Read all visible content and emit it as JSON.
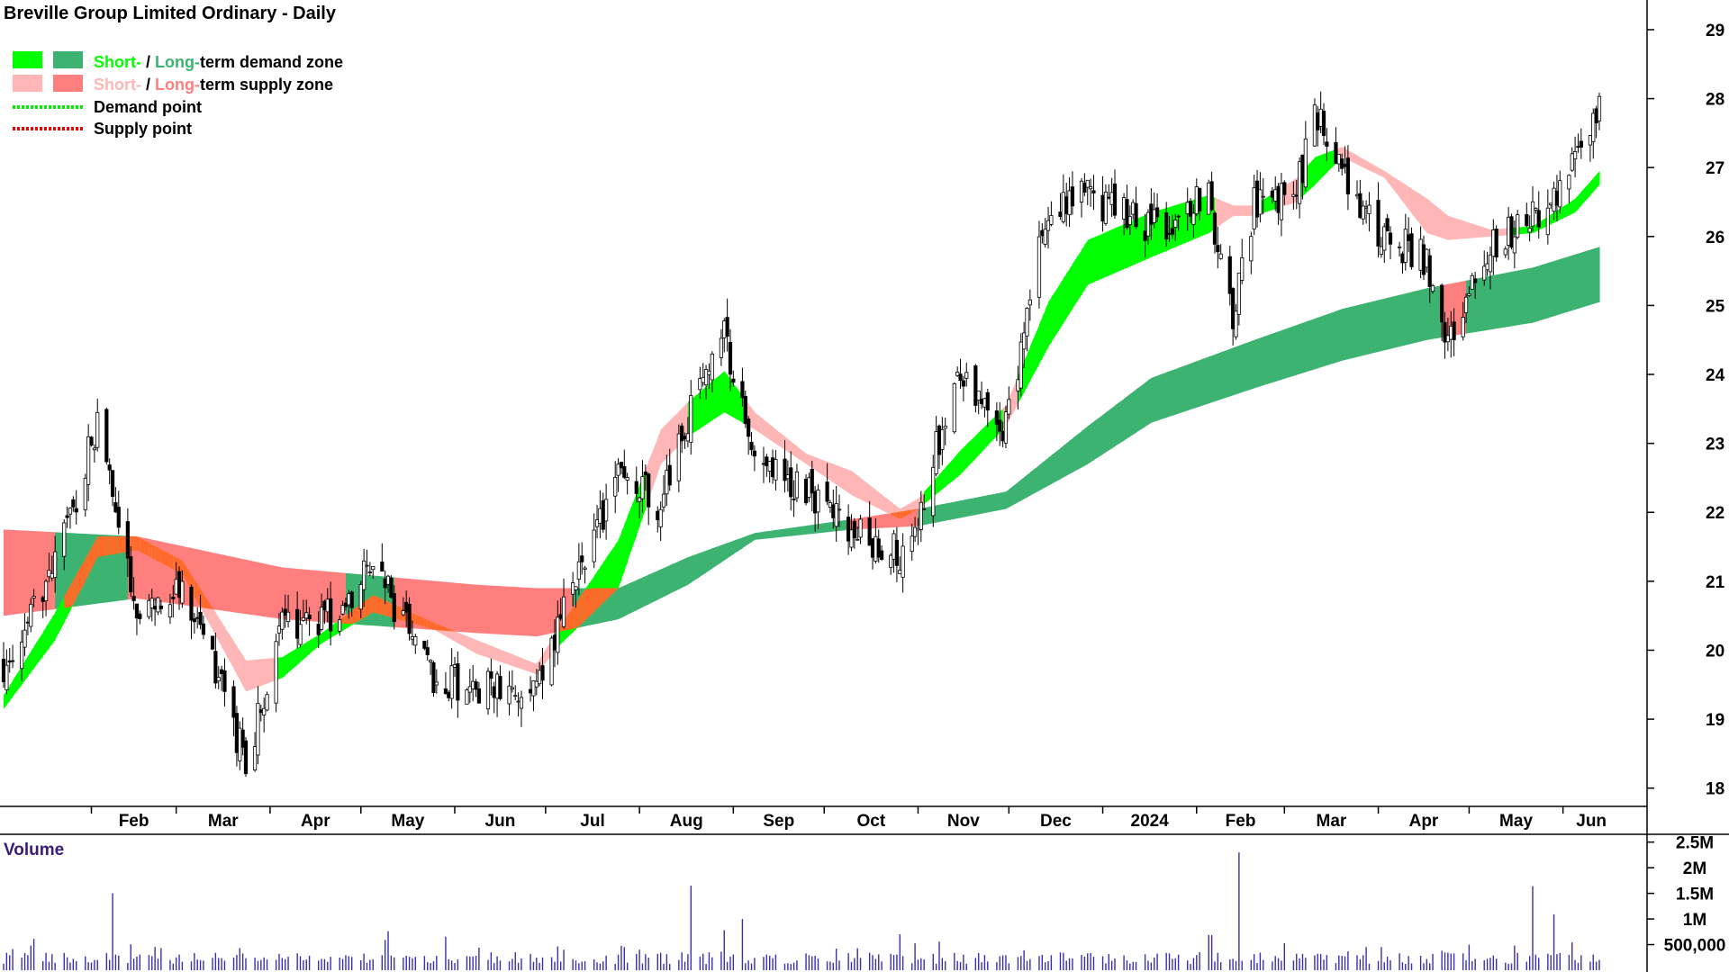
{
  "chart_data": {
    "type": "candlestick",
    "title": "Breville Group Limited Ordinary - Daily",
    "legend": {
      "demand_zone": {
        "short": "Short-",
        "sep": " / ",
        "long": "Long-",
        "rest": "term demand zone"
      },
      "supply_zone": {
        "short": "Short-",
        "sep": " / ",
        "long": "Long-",
        "rest": "term supply zone"
      },
      "demand_point": "Demand point",
      "supply_point": "Supply point",
      "placement": "top-left"
    },
    "colors": {
      "short_demand": "#00ff00",
      "long_demand": "#3cb371",
      "short_supply": "#ffb6b6",
      "long_supply": "#ff7f7f",
      "overlap": "#ff6a2a",
      "demand_point": "#00ee00",
      "supply_point": "#ee0000",
      "volume": "#3a2fb0",
      "volume_label": "#3a1c7a"
    },
    "y_axis": {
      "ticks": [
        "18",
        "19",
        "20",
        "21",
        "22",
        "23",
        "24",
        "25",
        "26",
        "27",
        "28",
        "29"
      ],
      "ylim": [
        17.8,
        29.3
      ]
    },
    "x_axis": {
      "labels": [
        "Feb",
        "Mar",
        "Apr",
        "May",
        "Jun",
        "Jul",
        "Aug",
        "Sep",
        "Oct",
        "Nov",
        "Dec",
        "2024",
        "Feb",
        "Mar",
        "Apr",
        "May",
        "Jun"
      ]
    },
    "price_anchors": {
      "x": [
        "2023-01-03",
        "2023-01-20",
        "2023-02-03",
        "2023-02-16",
        "2023-03-03",
        "2023-03-24",
        "2023-04-05",
        "2023-04-18",
        "2023-05-05",
        "2023-05-25",
        "2023-06-08",
        "2023-06-28",
        "2023-07-05",
        "2023-07-25",
        "2023-08-08",
        "2023-08-17",
        "2023-08-29",
        "2023-09-08",
        "2023-09-25",
        "2023-10-10",
        "2023-10-26",
        "2023-11-01",
        "2023-11-15",
        "2023-11-30",
        "2023-12-14",
        "2023-12-27",
        "2024-01-17",
        "2024-02-05",
        "2024-02-13",
        "2024-02-20",
        "2024-03-05",
        "2024-03-11",
        "2024-03-20",
        "2024-04-03",
        "2024-04-17",
        "2024-04-24",
        "2024-05-08",
        "2024-05-22",
        "2024-06-05",
        "2024-06-13"
      ],
      "close": [
        19.8,
        21.2,
        23.3,
        20.5,
        21.0,
        18.4,
        20.3,
        20.4,
        21.2,
        19.6,
        19.5,
        19.3,
        20.3,
        22.6,
        22.1,
        23.4,
        24.6,
        22.8,
        22.3,
        21.7,
        21.4,
        22.0,
        24.1,
        23.2,
        26.5,
        26.6,
        26.1,
        26.6,
        24.8,
        26.5,
        26.6,
        27.9,
        26.8,
        26.0,
        25.7,
        24.4,
        25.9,
        26.3,
        27.0,
        28.0
      ]
    },
    "zones": {
      "short_term": [
        {
          "x": "2023-01-03",
          "lo": 19.15,
          "hi": 19.35
        },
        {
          "x": "2023-01-20",
          "lo": 20.15,
          "hi": 20.55
        },
        {
          "x": "2023-02-03",
          "lo": 21.35,
          "hi": 21.65
        },
        {
          "x": "2023-02-16",
          "lo": 21.45,
          "hi": 21.65
        },
        {
          "x": "2023-03-03",
          "lo": 21.1,
          "hi": 21.3
        },
        {
          "x": "2023-03-24",
          "lo": 19.4,
          "hi": 19.85
        },
        {
          "x": "2023-04-05",
          "lo": 19.6,
          "hi": 19.9
        },
        {
          "x": "2023-04-18",
          "lo": 20.1,
          "hi": 20.25
        },
        {
          "x": "2023-05-05",
          "lo": 20.55,
          "hi": 20.8
        },
        {
          "x": "2023-05-25",
          "lo": 20.3,
          "hi": 20.4
        },
        {
          "x": "2023-06-08",
          "lo": 19.95,
          "hi": 20.15
        },
        {
          "x": "2023-06-28",
          "lo": 19.65,
          "hi": 19.8
        },
        {
          "x": "2023-07-05",
          "lo": 20.05,
          "hi": 20.3
        },
        {
          "x": "2023-07-25",
          "lo": 20.9,
          "hi": 21.6
        },
        {
          "x": "2023-08-08",
          "lo": 22.7,
          "hi": 23.2
        },
        {
          "x": "2023-08-17",
          "lo": 23.1,
          "hi": 23.6
        },
        {
          "x": "2023-08-29",
          "lo": 23.45,
          "hi": 24.05
        },
        {
          "x": "2023-09-08",
          "lo": 23.2,
          "hi": 23.45
        },
        {
          "x": "2023-09-25",
          "lo": 22.7,
          "hi": 22.85
        },
        {
          "x": "2023-10-10",
          "lo": 22.25,
          "hi": 22.6
        },
        {
          "x": "2023-10-26",
          "lo": 21.9,
          "hi": 22.05
        },
        {
          "x": "2023-11-01",
          "lo": 22.05,
          "hi": 22.2
        },
        {
          "x": "2023-11-15",
          "lo": 22.55,
          "hi": 22.9
        },
        {
          "x": "2023-11-30",
          "lo": 23.25,
          "hi": 23.55
        },
        {
          "x": "2023-12-14",
          "lo": 24.4,
          "hi": 25.05
        },
        {
          "x": "2023-12-27",
          "lo": 25.3,
          "hi": 25.95
        },
        {
          "x": "2024-01-17",
          "lo": 25.7,
          "hi": 26.35
        },
        {
          "x": "2024-02-05",
          "lo": 26.05,
          "hi": 26.6
        },
        {
          "x": "2024-02-13",
          "lo": 26.3,
          "hi": 26.45
        },
        {
          "x": "2024-02-20",
          "lo": 26.3,
          "hi": 26.45
        },
        {
          "x": "2024-03-05",
          "lo": 26.5,
          "hi": 26.85
        },
        {
          "x": "2024-03-11",
          "lo": 26.75,
          "hi": 27.15
        },
        {
          "x": "2024-03-20",
          "lo": 27.15,
          "hi": 27.3
        },
        {
          "x": "2024-04-03",
          "lo": 26.85,
          "hi": 26.95
        },
        {
          "x": "2024-04-17",
          "lo": 26.05,
          "hi": 26.55
        },
        {
          "x": "2024-04-24",
          "lo": 25.95,
          "hi": 26.3
        },
        {
          "x": "2024-05-08",
          "lo": 26.0,
          "hi": 26.1
        },
        {
          "x": "2024-05-22",
          "lo": 26.05,
          "hi": 26.15
        },
        {
          "x": "2024-06-05",
          "lo": 26.35,
          "hi": 26.55
        },
        {
          "x": "2024-06-13",
          "lo": 26.75,
          "hi": 26.95
        }
      ],
      "long_term": [
        {
          "x": "2023-01-03",
          "lo": 20.5,
          "hi": 21.75
        },
        {
          "x": "2023-02-16",
          "lo": 20.75,
          "hi": 21.65
        },
        {
          "x": "2023-04-05",
          "lo": 20.45,
          "hi": 21.2
        },
        {
          "x": "2023-06-08",
          "lo": 20.25,
          "hi": 20.95
        },
        {
          "x": "2023-06-28",
          "lo": 20.2,
          "hi": 20.9
        },
        {
          "x": "2023-07-25",
          "lo": 20.45,
          "hi": 20.9
        },
        {
          "x": "2023-08-17",
          "lo": 20.95,
          "hi": 21.35
        },
        {
          "x": "2023-09-08",
          "lo": 21.6,
          "hi": 21.7
        },
        {
          "x": "2023-10-10",
          "lo": 21.75,
          "hi": 21.9
        },
        {
          "x": "2023-11-01",
          "lo": 21.8,
          "hi": 22.05
        },
        {
          "x": "2023-11-30",
          "lo": 22.05,
          "hi": 22.3
        },
        {
          "x": "2023-12-27",
          "lo": 22.7,
          "hi": 23.25
        },
        {
          "x": "2024-01-17",
          "lo": 23.3,
          "hi": 23.95
        },
        {
          "x": "2024-02-20",
          "lo": 23.8,
          "hi": 24.5
        },
        {
          "x": "2024-03-20",
          "lo": 24.2,
          "hi": 24.95
        },
        {
          "x": "2024-04-17",
          "lo": 24.5,
          "hi": 25.25
        },
        {
          "x": "2024-05-22",
          "lo": 24.75,
          "hi": 25.55
        },
        {
          "x": "2024-06-13",
          "lo": 25.05,
          "hi": 25.85
        }
      ]
    },
    "volume": {
      "label": "Volume",
      "ticks": [
        "500,000",
        "1M",
        "1.5M",
        "2M",
        "2.5M"
      ],
      "ylim": [
        0,
        2600000
      ],
      "spikes": [
        {
          "x": "2023-01-12",
          "v": 480000
        },
        {
          "x": "2023-02-08",
          "v": 1500000
        },
        {
          "x": "2023-05-10",
          "v": 760000
        },
        {
          "x": "2023-08-18",
          "v": 1650000
        },
        {
          "x": "2023-08-29",
          "v": 780000
        },
        {
          "x": "2023-09-04",
          "v": 1000000
        },
        {
          "x": "2023-10-05",
          "v": 420000
        },
        {
          "x": "2023-10-26",
          "v": 700000
        },
        {
          "x": "2024-02-15",
          "v": 2300000
        },
        {
          "x": "2024-04-22",
          "v": 380000
        },
        {
          "x": "2024-05-22",
          "v": 1640000
        },
        {
          "x": "2024-05-29",
          "v": 1090000
        }
      ]
    }
  }
}
